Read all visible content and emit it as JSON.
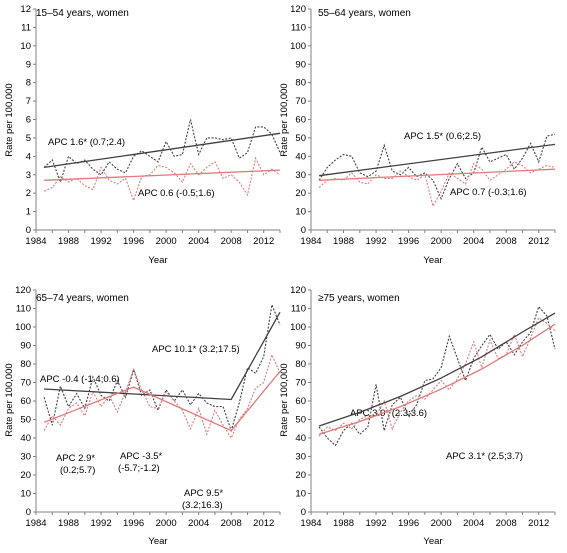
{
  "chart_data": [
    {
      "type": "line",
      "title": "15–54 years, women",
      "xlabel": "Year",
      "ylabel": "Rate per 100,000",
      "xlim": [
        1984,
        2014
      ],
      "ylim": [
        0,
        12
      ],
      "xticks": [
        "1984",
        "1988",
        "1992",
        "1996",
        "2000",
        "2004",
        "2008",
        "2012"
      ],
      "yticks": [
        "0",
        "1",
        "2",
        "3",
        "4",
        "5",
        "6",
        "7",
        "8",
        "9",
        "10",
        "11",
        "12"
      ],
      "colors": {
        "black": "#404040",
        "red": "#e07a7a"
      },
      "series": [
        {
          "color": "black",
          "style": "dotted",
          "x": [
            1985,
            1986,
            1987,
            1988,
            1989,
            1990,
            1991,
            1992,
            1993,
            1994,
            1995,
            1996,
            1997,
            1998,
            1999,
            2000,
            2001,
            2002,
            2003,
            2004,
            2005,
            2006,
            2007,
            2008,
            2009,
            2010,
            2011,
            2012,
            2013,
            2014
          ],
          "y": [
            3.4,
            3.8,
            2.6,
            4.0,
            3.6,
            3.8,
            3.3,
            3.0,
            3.7,
            3.3,
            3.1,
            4.0,
            4.3,
            4.0,
            3.7,
            4.8,
            4.0,
            4.1,
            6.0,
            4.1,
            5.0,
            5.0,
            4.9,
            5.0,
            3.9,
            4.2,
            5.6,
            5.6,
            5.2,
            4.2
          ]
        },
        {
          "color": "red",
          "style": "dotted",
          "x": [
            1985,
            1986,
            1987,
            1988,
            1989,
            1990,
            1991,
            1992,
            1993,
            1994,
            1995,
            1996,
            1997,
            1998,
            1999,
            2000,
            2001,
            2002,
            2003,
            2004,
            2005,
            2006,
            2007,
            2008,
            2009,
            2010,
            2011,
            2012,
            2013,
            2014
          ],
          "y": [
            2.1,
            2.3,
            2.9,
            2.6,
            2.8,
            2.4,
            2.2,
            3.4,
            2.7,
            2.5,
            2.8,
            1.6,
            2.9,
            3.0,
            3.5,
            3.4,
            3.1,
            2.6,
            3.6,
            3.0,
            3.4,
            3.7,
            2.8,
            3.0,
            2.6,
            1.9,
            3.9,
            3.0,
            3.3,
            3.0
          ]
        },
        {
          "name": "APC 1.6* (0.7;2.4)",
          "color": "black",
          "style": "solid",
          "x": [
            1985,
            2014
          ],
          "y": [
            3.4,
            5.25
          ]
        },
        {
          "name": "APC 0.6 (-0.5;1.6)",
          "color": "red",
          "style": "solid",
          "x": [
            1985,
            2014
          ],
          "y": [
            2.7,
            3.25
          ]
        }
      ],
      "annotations": [
        "APC 1.6* (0.7;2.4)",
        "APC 0.6 (-0.5;1.6)"
      ]
    },
    {
      "type": "line",
      "title": "55–64 years, women",
      "xlabel": "Year",
      "ylabel": "Rate per 100,000",
      "xlim": [
        1984,
        2014
      ],
      "ylim": [
        0,
        120
      ],
      "xticks": [
        "1984",
        "1988",
        "1992",
        "1996",
        "2000",
        "2004",
        "2008",
        "2012"
      ],
      "yticks": [
        "0",
        "10",
        "20",
        "30",
        "40",
        "50",
        "60",
        "70",
        "80",
        "90",
        "100",
        "110",
        "120"
      ],
      "colors": {
        "black": "#404040",
        "red": "#e07a7a"
      },
      "series": [
        {
          "color": "black",
          "style": "dotted",
          "x": [
            1985,
            1986,
            1987,
            1988,
            1989,
            1990,
            1991,
            1992,
            1993,
            1994,
            1995,
            1996,
            1997,
            1998,
            1999,
            2000,
            2001,
            2002,
            2003,
            2004,
            2005,
            2006,
            2007,
            2008,
            2009,
            2010,
            2011,
            2012,
            2013,
            2014
          ],
          "y": [
            27,
            34,
            38,
            41,
            40,
            31,
            29,
            32,
            46,
            32,
            30,
            34,
            29,
            31,
            27,
            17,
            28,
            36,
            28,
            31,
            45,
            37,
            39,
            41,
            33,
            39,
            47,
            37,
            51,
            52
          ]
        },
        {
          "color": "red",
          "style": "dotted",
          "x": [
            1985,
            1986,
            1987,
            1988,
            1989,
            1990,
            1991,
            1992,
            1993,
            1994,
            1995,
            1996,
            1997,
            1998,
            1999,
            2000,
            2001,
            2002,
            2003,
            2004,
            2005,
            2006,
            2007,
            2008,
            2009,
            2010,
            2011,
            2012,
            2013,
            2014
          ],
          "y": [
            23,
            27,
            28,
            27,
            31,
            26,
            25,
            30,
            28,
            28,
            32,
            29,
            27,
            30,
            13,
            21,
            31,
            28,
            25,
            36,
            33,
            27,
            30,
            33,
            37,
            35,
            31,
            33,
            35,
            34
          ]
        },
        {
          "name": "APC 1.5* (0.6;2.5)",
          "color": "black",
          "style": "solid",
          "x": [
            1985,
            2014
          ],
          "y": [
            29.5,
            46.5
          ]
        },
        {
          "name": "APC 0.7 (-0.3;1.6)",
          "color": "red",
          "style": "solid",
          "x": [
            1985,
            2014
          ],
          "y": [
            27,
            33
          ]
        }
      ],
      "annotations": [
        "APC 1.5* (0.6;2.5)",
        "APC 0.7 (-0.3;1.6)"
      ]
    },
    {
      "type": "line",
      "title": "65–74 years, women",
      "xlabel": "Year",
      "ylabel": "Rate per 100,000",
      "xlim": [
        1984,
        2014
      ],
      "ylim": [
        0,
        120
      ],
      "xticks": [
        "1984",
        "1988",
        "1992",
        "1996",
        "2000",
        "2004",
        "2008",
        "2012"
      ],
      "yticks": [
        "0",
        "10",
        "20",
        "30",
        "40",
        "50",
        "60",
        "70",
        "80",
        "90",
        "100",
        "110",
        "120"
      ],
      "colors": {
        "black": "#404040",
        "red": "#e07a7a"
      },
      "series": [
        {
          "color": "black",
          "style": "dotted",
          "x": [
            1985,
            1986,
            1987,
            1988,
            1989,
            1990,
            1991,
            1992,
            1993,
            1994,
            1995,
            1996,
            1997,
            1998,
            1999,
            2000,
            2001,
            2002,
            2003,
            2004,
            2005,
            2006,
            2007,
            2008,
            2009,
            2010,
            2011,
            2012,
            2013,
            2014
          ],
          "y": [
            62,
            47,
            68,
            57,
            64,
            56,
            73,
            63,
            60,
            71,
            62,
            77,
            63,
            66,
            55,
            66,
            60,
            66,
            58,
            64,
            59,
            57,
            57,
            44,
            59,
            78,
            75,
            84,
            112,
            101
          ]
        },
        {
          "color": "red",
          "style": "dotted",
          "x": [
            1985,
            1986,
            1987,
            1988,
            1989,
            1990,
            1991,
            1992,
            1993,
            1994,
            1995,
            1996,
            1997,
            1998,
            1999,
            2000,
            2001,
            2002,
            2003,
            2004,
            2005,
            2006,
            2007,
            2008,
            2009,
            2010,
            2011,
            2012,
            2013,
            2014
          ],
          "y": [
            44,
            52,
            47,
            56,
            59,
            52,
            65,
            57,
            63,
            54,
            65,
            77,
            66,
            57,
            56,
            65,
            60,
            55,
            45,
            56,
            42,
            55,
            47,
            40,
            50,
            56,
            67,
            70,
            85,
            75
          ]
        },
        {
          "name": "APC -0.4 (-1.4;0.6)",
          "color": "black",
          "style": "solid",
          "x": [
            1985,
            2008,
            2014
          ],
          "y": [
            66.5,
            60.8,
            108
          ]
        },
        {
          "name": "APC 2.9* (0.2;5.7)",
          "color": "red",
          "style": "solid",
          "x": [
            1985,
            1996,
            2008,
            2014
          ],
          "y": [
            48.5,
            67.5,
            44,
            76
          ]
        }
      ],
      "annotations": [
        "APC -0.4 (-1.4;0.6)",
        "APC 10.1* (3.2;17.5)",
        "APC 2.9*",
        "(0.2;5.7)",
        "APC -3.5*",
        "(-5.7;-1.2)",
        "APC 9.5*",
        "(3.2;16.3)"
      ]
    },
    {
      "type": "line",
      "title": "≥75 years, women",
      "xlabel": "Year",
      "ylabel": "Rate per 100,000",
      "xlim": [
        1984,
        2014
      ],
      "ylim": [
        0,
        120
      ],
      "xticks": [
        "1984",
        "1988",
        "1992",
        "1996",
        "2000",
        "2004",
        "2008",
        "2012"
      ],
      "yticks": [
        "0",
        "10",
        "20",
        "30",
        "40",
        "50",
        "60",
        "70",
        "80",
        "90",
        "100",
        "110",
        "120"
      ],
      "colors": {
        "black": "#404040",
        "red": "#e07a7a"
      },
      "series": [
        {
          "color": "black",
          "style": "dotted",
          "x": [
            1985,
            1986,
            1987,
            1988,
            1989,
            1990,
            1991,
            1992,
            1993,
            1994,
            1995,
            1996,
            1997,
            1998,
            1999,
            2000,
            2001,
            2002,
            2003,
            2004,
            2005,
            2006,
            2007,
            2008,
            2009,
            2010,
            2011,
            2012,
            2013,
            2014
          ],
          "y": [
            46,
            40,
            36,
            44,
            48,
            42,
            46,
            69,
            44,
            58,
            62,
            52,
            58,
            71,
            72,
            78,
            95,
            83,
            71,
            83,
            90,
            96,
            88,
            92,
            85,
            92,
            97,
            111,
            106,
            88
          ]
        },
        {
          "color": "red",
          "style": "dotted",
          "x": [
            1985,
            1986,
            1987,
            1988,
            1989,
            1990,
            1991,
            1992,
            1993,
            1994,
            1995,
            1996,
            1997,
            1998,
            1999,
            2000,
            2001,
            2002,
            2003,
            2004,
            2005,
            2006,
            2007,
            2008,
            2009,
            2010,
            2011,
            2012,
            2013,
            2014
          ],
          "y": [
            41,
            46,
            44,
            48,
            45,
            50,
            52,
            52,
            60,
            45,
            54,
            60,
            63,
            61,
            66,
            71,
            66,
            72,
            80,
            92,
            78,
            93,
            83,
            85,
            96,
            84,
            94,
            105,
            102,
            98
          ]
        },
        {
          "name": "APC 3.0* (2.3;3.6)",
          "color": "black",
          "style": "solid",
          "x": [
            1985,
            1990,
            1995,
            2000,
            2005,
            2010,
            2014
          ],
          "y": [
            46.5,
            53.9,
            62.5,
            72.4,
            83.9,
            97.3,
            107.5
          ]
        },
        {
          "name": "APC 3.1* (2.5;3.7)",
          "color": "red",
          "style": "solid",
          "x": [
            1985,
            1990,
            1995,
            2000,
            2005,
            2010,
            2014
          ],
          "y": [
            42,
            48.9,
            57,
            66.4,
            77.3,
            90.1,
            101.5
          ]
        }
      ],
      "annotations": [
        "APC 3.0* (2.3;3.6)",
        "APC 3.1* (2.5;3.7)"
      ]
    }
  ]
}
